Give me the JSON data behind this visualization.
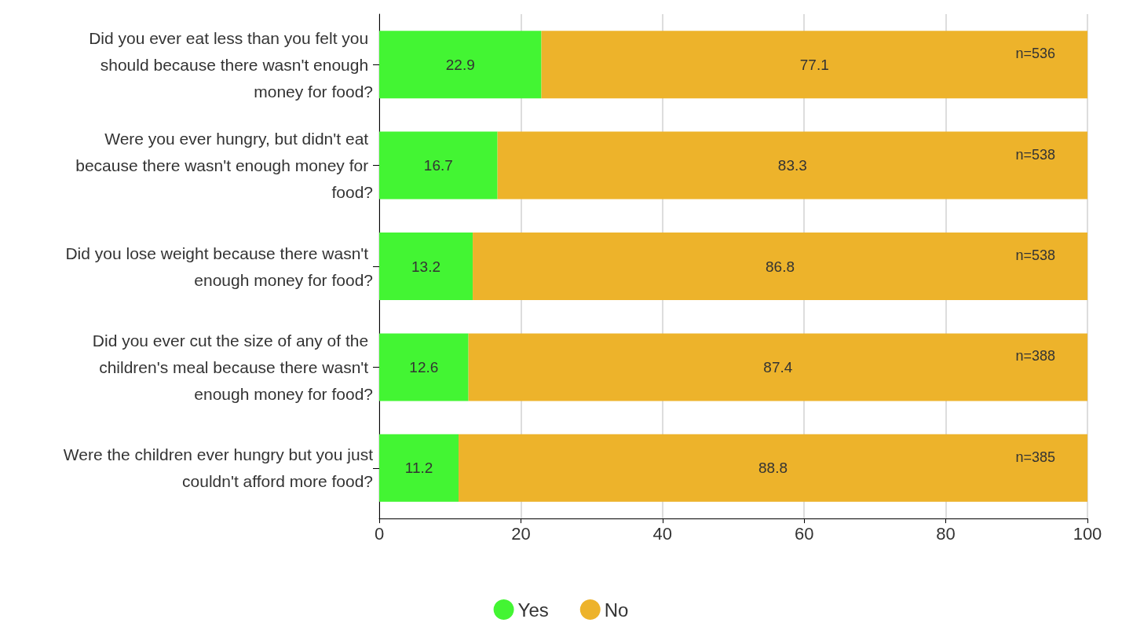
{
  "chart_data": {
    "type": "bar",
    "orientation": "horizontal",
    "stacked": true,
    "categories": [
      "Did you ever eat less than you felt you should because there wasn't enough money for food?",
      "Were you ever hungry, but didn't eat because there wasn't enough money for food?",
      "Did you lose weight because there wasn't enough money for food?",
      "Did you ever cut the size of any of the children's meal because there wasn't enough money for food?",
      "Were the children ever hungry but you just couldn't afford more food?"
    ],
    "series": [
      {
        "name": "Yes",
        "color": "#43f533",
        "values": [
          22.9,
          16.7,
          13.2,
          12.6,
          11.2
        ]
      },
      {
        "name": "No",
        "color": "#edb32b",
        "values": [
          77.1,
          83.3,
          86.8,
          87.4,
          88.8
        ]
      }
    ],
    "data_labels": true,
    "xlim": [
      0,
      100
    ],
    "xticks": [
      0,
      20,
      40,
      60,
      80,
      100
    ],
    "grid": "x",
    "legend": "bottom",
    "annotations": [
      "n=536",
      "n=538",
      "n=538",
      "n=388",
      "n=385"
    ]
  }
}
